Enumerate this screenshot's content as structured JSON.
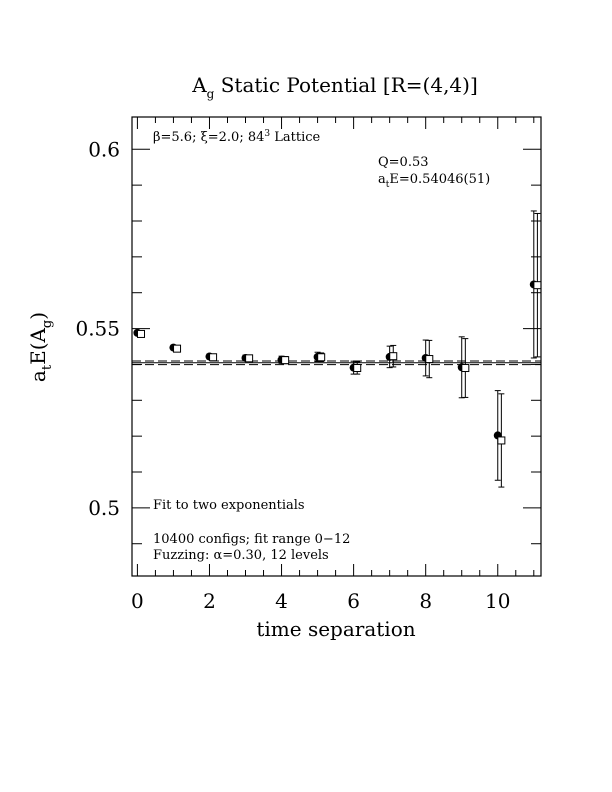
{
  "chart_data": {
    "type": "scatter",
    "title": "A_g Static Potential [R=(4,4)]",
    "title_parts": {
      "main": "A",
      "sub": "g",
      "rest": " Static Potential [R=(4,4)]"
    },
    "xlabel": "time separation",
    "ylabel_parts": {
      "a": "a",
      "t": "t",
      "e": "E(A",
      "g": "g",
      "close": ")"
    },
    "xlim": [
      -0.15,
      11.2
    ],
    "ylim": [
      0.481,
      0.609
    ],
    "x_ticks": [
      0,
      2,
      4,
      6,
      8,
      10
    ],
    "y_ticks": [
      0.5,
      0.55,
      0.6
    ],
    "x_tick_labels": [
      "0",
      "2",
      "4",
      "6",
      "8",
      "10"
    ],
    "y_tick_labels": [
      "0.5",
      "0.55",
      "0.6"
    ],
    "annotations": {
      "lattice_prefix": "β=5.6; ξ=2.0; 84",
      "lattice_sup": "3",
      "lattice_suffix": " Lattice",
      "q": "Q=0.53",
      "fit_a": "a",
      "fit_t": "t",
      "fit_value": "E=0.54046(51)",
      "fit_label": "Fit to two exponentials",
      "configs": "10400 configs; fit range 0−12",
      "fuzzing": "Fuzzing: α=0.30, 12 levels"
    },
    "fit": {
      "center": 0.54046,
      "error": 0.00051
    },
    "series": [
      {
        "marker": "filled-circle",
        "x": [
          0,
          1,
          2,
          3,
          4,
          5,
          6,
          7,
          8,
          9,
          10,
          11
        ],
        "y": [
          0.5488,
          0.5447,
          0.5422,
          0.5418,
          0.5413,
          0.5421,
          0.5391,
          0.5421,
          0.5418,
          0.5392,
          0.5202,
          0.5623
        ],
        "err": [
          0.0005,
          0.0006,
          0.0007,
          0.0008,
          0.001,
          0.0013,
          0.0018,
          0.003,
          0.005,
          0.0085,
          0.0125,
          0.0205
        ]
      },
      {
        "marker": "open-square",
        "x": [
          0.1,
          1.1,
          2.1,
          3.1,
          4.1,
          5.1,
          6.1,
          7.1,
          8.1,
          9.1,
          10.1,
          11.1
        ],
        "y": [
          0.5485,
          0.5444,
          0.542,
          0.5417,
          0.5412,
          0.542,
          0.539,
          0.5423,
          0.5415,
          0.539,
          0.5188,
          0.5621
        ],
        "err": [
          0.0005,
          0.0006,
          0.0007,
          0.0008,
          0.001,
          0.0012,
          0.0017,
          0.003,
          0.0052,
          0.0082,
          0.013,
          0.02
        ]
      }
    ]
  }
}
